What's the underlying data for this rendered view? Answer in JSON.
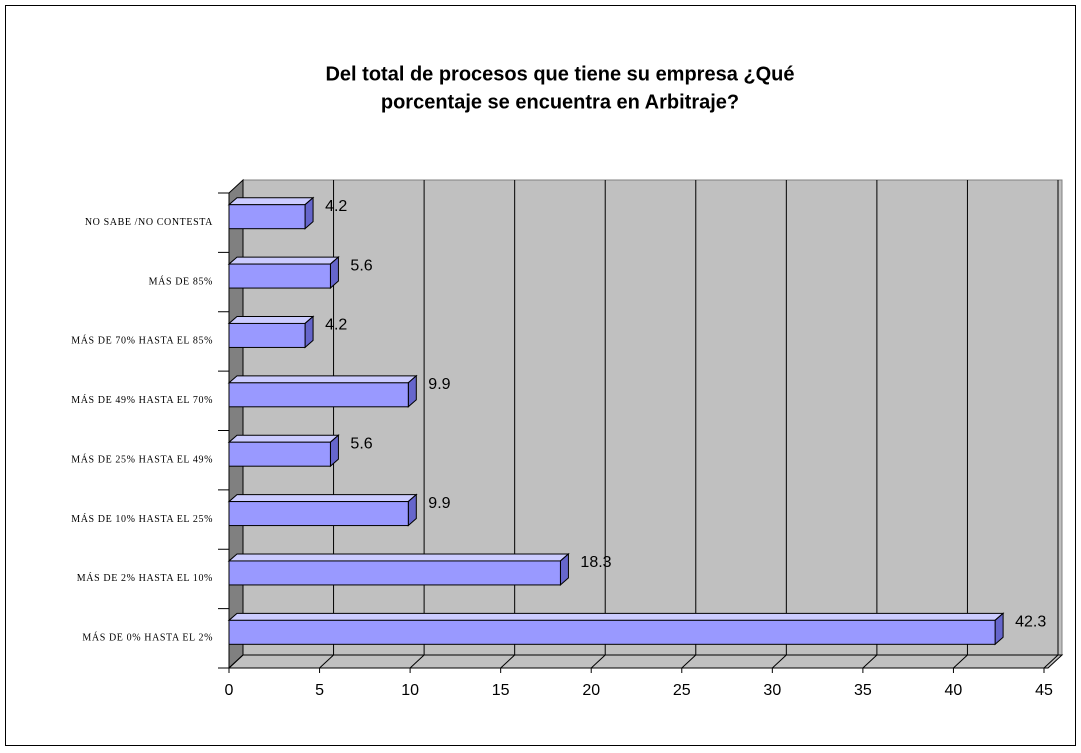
{
  "chart_data": {
    "type": "bar",
    "orientation": "horizontal",
    "title": "Del total de procesos que tiene su empresa ¿Qué porcentaje se encuentra en Arbitraje?",
    "categories": [
      "NO SABE /NO CONTESTA",
      "MÁS DE 85%",
      "MÁS DE 70% HASTA EL 85%",
      "MÁS DE 49% HASTA EL 70%",
      "MÁS DE 25% HASTA EL 49%",
      "MÁS DE 10% HASTA EL 25%",
      "MÁS DE 2% HASTA EL 10%",
      "MÁS DE 0% HASTA EL 2%"
    ],
    "values": [
      4.2,
      5.6,
      4.2,
      9.9,
      5.6,
      9.9,
      18.3,
      42.3
    ],
    "color": "#9999ff",
    "xlim": [
      0,
      45
    ],
    "xticks": [
      0,
      5,
      10,
      15,
      20,
      25,
      30,
      35,
      40,
      45
    ],
    "grid": true
  }
}
